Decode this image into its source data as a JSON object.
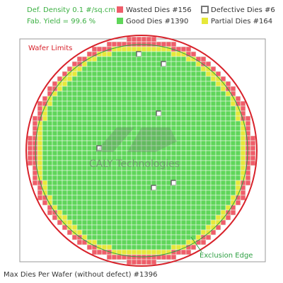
{
  "header": {
    "density": "Def. Density 0.1 #/sq.cm",
    "yield": "Fab. Yield = 99.6 %"
  },
  "legend": {
    "wasted": "Wasted Dies #156",
    "defective": "Defective Dies #6",
    "good": "Good Dies #1390",
    "partial": "Partial Dies #164"
  },
  "wafer": {
    "limits_label": "Wafer Limits",
    "watermark": "CALY Technologies",
    "exclusion_label": "Exclusion Edge"
  },
  "footer": "Max Dies Per Wafer (without defect) #1396"
}
